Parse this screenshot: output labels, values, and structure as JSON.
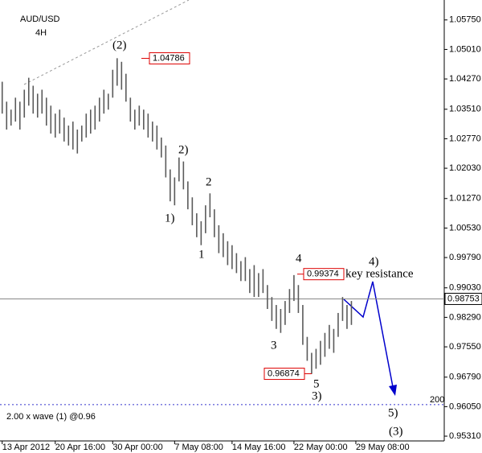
{
  "chart_data": {
    "type": "hilo",
    "title": "AUD/USD",
    "subtitle": "4H",
    "color": "#5a5a5a",
    "ylim": [
      0.9519,
      1.0625
    ],
    "yticks": [
      {
        "value": 1.0575,
        "label": "1.05750"
      },
      {
        "value": 1.0501,
        "label": "1.05010"
      },
      {
        "value": 1.0427,
        "label": "1.04270"
      },
      {
        "value": 1.0351,
        "label": "1.03510"
      },
      {
        "value": 1.0277,
        "label": "1.02770"
      },
      {
        "value": 1.0203,
        "label": "1.02030"
      },
      {
        "value": 1.0127,
        "label": "1.01270"
      },
      {
        "value": 1.0053,
        "label": "1.00530"
      },
      {
        "value": 0.9979,
        "label": "0.99790"
      },
      {
        "value": 0.9903,
        "label": "0.99030"
      },
      {
        "value": 0.9829,
        "label": "0.98290"
      },
      {
        "value": 0.9755,
        "label": "0.97550"
      },
      {
        "value": 0.9679,
        "label": "0.96790"
      },
      {
        "value": 0.9605,
        "label": "0.96050"
      },
      {
        "value": 0.9531,
        "label": "0.95310"
      }
    ],
    "xlim": [
      -0.5,
      100
    ],
    "xticks": [
      {
        "value": 0,
        "label": "13 Apr 2012"
      },
      {
        "value": 12,
        "label": "20 Apr 16:00"
      },
      {
        "value": 25,
        "label": "30 Apr 00:00"
      },
      {
        "value": 39,
        "label": "7 May 08:00"
      },
      {
        "value": 52,
        "label": "14 May 16:00"
      },
      {
        "value": 66,
        "label": "22 May 00:00"
      },
      {
        "value": 80,
        "label": "29 May 08:00"
      }
    ],
    "high": [
      1.042,
      1.037,
      1.035,
      1.038,
      1.037,
      1.04,
      1.043,
      1.041,
      1.039,
      1.04,
      1.038,
      1.036,
      1.034,
      1.035,
      1.033,
      1.031,
      1.032,
      1.03,
      1.031,
      1.034,
      1.035,
      1.036,
      1.038,
      1.04,
      1.039,
      1.045,
      1.0479,
      1.047,
      1.044,
      1.038,
      1.035,
      1.036,
      1.035,
      1.034,
      1.032,
      1.031,
      1.028,
      1.026,
      1.02,
      1.018,
      1.023,
      1.022,
      1.017,
      1.013,
      1.009,
      1.007,
      1.011,
      1.014,
      1.01,
      1.006,
      1.004,
      1.002,
      1.001,
      0.999,
      0.997,
      0.998,
      0.995,
      0.996,
      0.994,
      0.995,
      0.991,
      0.988,
      0.986,
      0.985,
      0.987,
      0.99,
      0.9935,
      0.991,
      0.986,
      0.978,
      0.974,
      0.975,
      0.977,
      0.979,
      0.981,
      0.98,
      0.984,
      0.988,
      0.986,
      0.987
    ],
    "low": [
      1.034,
      1.03,
      1.031,
      1.032,
      1.03,
      1.033,
      1.036,
      1.034,
      1.033,
      1.034,
      1.031,
      1.029,
      1.028,
      1.029,
      1.027,
      1.026,
      1.025,
      1.024,
      1.027,
      1.028,
      1.029,
      1.03,
      1.032,
      1.034,
      1.035,
      1.038,
      1.041,
      1.04,
      1.037,
      1.032,
      1.03,
      1.031,
      1.03,
      1.028,
      1.027,
      1.025,
      1.023,
      1.018,
      1.012,
      1.011,
      1.017,
      1.015,
      1.01,
      1.006,
      1.003,
      1.001,
      1.004,
      1.008,
      1.003,
      0.999,
      0.998,
      0.996,
      0.995,
      0.994,
      0.992,
      0.992,
      0.989,
      0.988,
      0.988,
      0.989,
      0.985,
      0.982,
      0.98,
      0.979,
      0.981,
      0.984,
      0.987,
      0.984,
      0.976,
      0.972,
      0.9687,
      0.97,
      0.971,
      0.973,
      0.975,
      0.974,
      0.978,
      0.982,
      0.98,
      0.981
    ],
    "current_price": 0.98753,
    "price_labels": [
      1.04786,
      0.99374,
      0.96874
    ],
    "target_line": 0.961,
    "annotations": [
      "(2)",
      "2)",
      "1)",
      "2",
      "1",
      "4",
      "3",
      "5",
      "3)",
      "4)",
      "key resistance",
      "5)",
      "(3)",
      "2.00 x wave (1) @0.96",
      "200"
    ]
  }
}
